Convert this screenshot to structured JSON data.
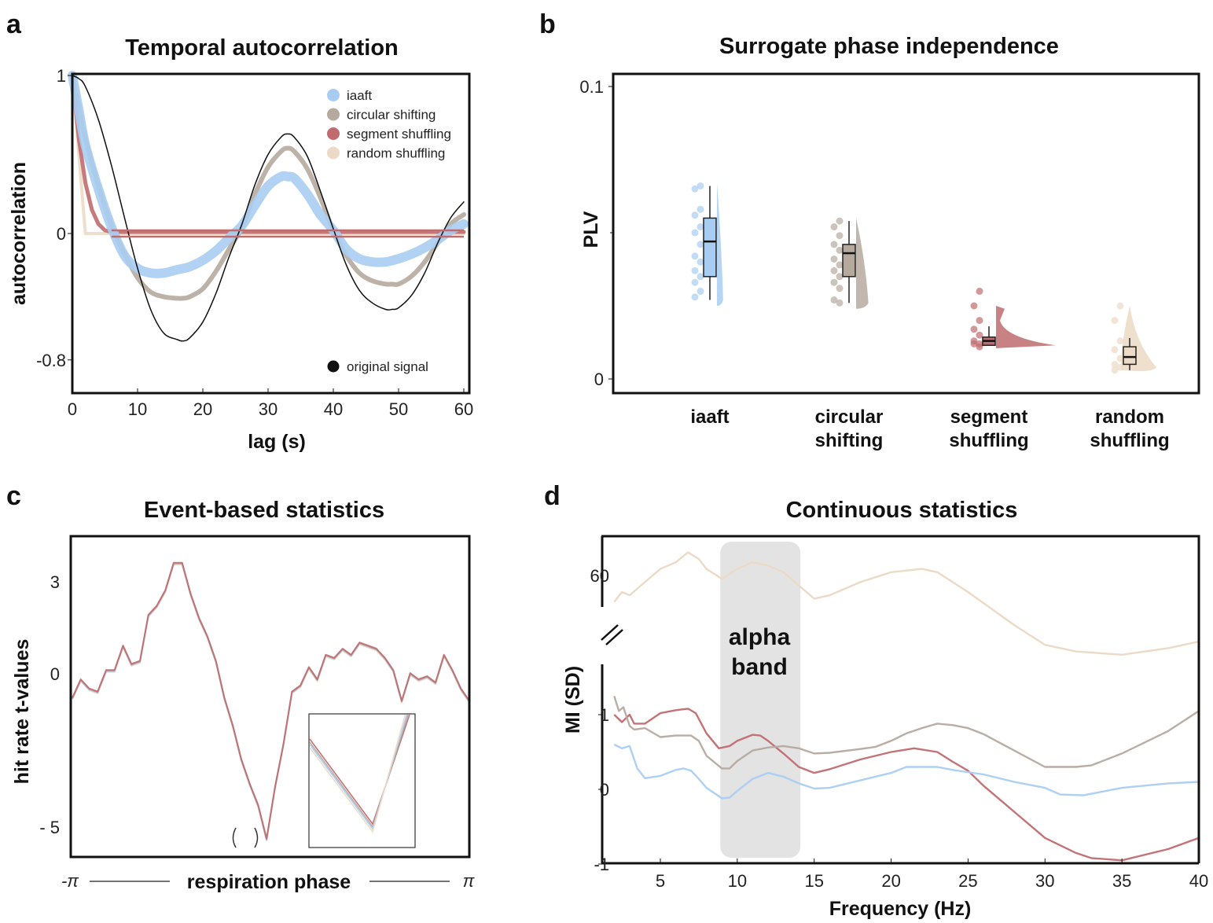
{
  "figure": {
    "colors": {
      "iaaft": "#a9cdf2",
      "circular": "#b6aa9f",
      "segment": "#c06c6f",
      "random": "#ecdac6",
      "original": "#111111",
      "alpha_band": "#e3e3e3"
    }
  },
  "chart_data": [
    {
      "panel": "a",
      "type": "line",
      "title": "Temporal autocorrelation",
      "xlabel": "lag (s)",
      "ylabel": "autocorrelation",
      "xlim": [
        0,
        60
      ],
      "ylim": [
        -0.98,
        1
      ],
      "xticks": [
        "0",
        "10",
        "20",
        "30",
        "40",
        "50",
        "60"
      ],
      "yticks": [
        "1",
        "0",
        "-0.8"
      ],
      "ytick_values": [
        1,
        0,
        -0.8
      ],
      "legend": {
        "placement": "top-right",
        "entries": [
          "iaaft",
          "circular shifting",
          "segment shuffling",
          "random shuffling"
        ]
      },
      "legend2": {
        "placement": "bottom-right",
        "entries": [
          "original signal"
        ]
      },
      "series": [
        {
          "name": "original signal",
          "key": "original",
          "x": [
            0,
            1,
            2,
            4,
            6,
            8,
            10,
            12,
            14,
            16,
            17,
            18,
            20,
            22,
            24,
            26,
            28,
            30,
            32,
            33,
            34,
            36,
            38,
            40,
            42,
            44,
            46,
            48,
            49,
            50,
            52,
            54,
            56,
            58,
            60
          ],
          "y": [
            1,
            0.98,
            0.93,
            0.72,
            0.43,
            0.1,
            -0.22,
            -0.48,
            -0.63,
            -0.67,
            -0.68,
            -0.66,
            -0.56,
            -0.38,
            -0.15,
            0.06,
            0.31,
            0.5,
            0.61,
            0.63,
            0.61,
            0.49,
            0.27,
            0.03,
            -0.2,
            -0.36,
            -0.44,
            -0.48,
            -0.48,
            -0.47,
            -0.39,
            -0.25,
            -0.06,
            0.1,
            0.2
          ]
        },
        {
          "name": "circular shifting",
          "key": "circular",
          "x": [
            0,
            1,
            2,
            4,
            6,
            8,
            10,
            12,
            14,
            16,
            17,
            18,
            20,
            22,
            24,
            26,
            28,
            30,
            32,
            33,
            34,
            36,
            38,
            40,
            42,
            44,
            46,
            48,
            49,
            50,
            52,
            54,
            56,
            58,
            60
          ],
          "y": [
            1,
            0.8,
            0.6,
            0.3,
            0.05,
            -0.13,
            -0.28,
            -0.37,
            -0.4,
            -0.41,
            -0.41,
            -0.4,
            -0.35,
            -0.24,
            -0.1,
            0.04,
            0.25,
            0.42,
            0.52,
            0.54,
            0.52,
            0.41,
            0.23,
            0.02,
            -0.14,
            -0.25,
            -0.3,
            -0.32,
            -0.32,
            -0.32,
            -0.27,
            -0.18,
            -0.06,
            0.06,
            0.12
          ]
        },
        {
          "name": "iaaft",
          "key": "iaaft",
          "x": [
            0,
            1,
            2,
            4,
            6,
            8,
            10,
            12,
            14,
            16,
            18,
            20,
            22,
            24,
            26,
            28,
            30,
            32,
            33,
            34,
            36,
            38,
            40,
            42,
            44,
            46,
            48,
            50,
            52,
            54,
            56,
            58,
            60
          ],
          "y": [
            1,
            0.78,
            0.56,
            0.28,
            0.04,
            -0.14,
            -0.22,
            -0.25,
            -0.25,
            -0.23,
            -0.21,
            -0.17,
            -0.11,
            -0.03,
            0.05,
            0.18,
            0.3,
            0.36,
            0.36,
            0.35,
            0.25,
            0.12,
            0.02,
            -0.1,
            -0.16,
            -0.18,
            -0.18,
            -0.16,
            -0.13,
            -0.09,
            -0.04,
            0.02,
            0.06
          ]
        },
        {
          "name": "segment shuffling",
          "key": "segment",
          "x": [
            0,
            1,
            2,
            3,
            4,
            5,
            6,
            60
          ],
          "y": [
            1,
            0.6,
            0.32,
            0.15,
            0.06,
            0.02,
            0.01,
            0.01
          ]
        },
        {
          "name": "random shuffling",
          "key": "random",
          "x": [
            0,
            1,
            2,
            60
          ],
          "y": [
            1,
            0.5,
            0,
            0
          ]
        }
      ]
    },
    {
      "panel": "b",
      "type": "box",
      "title": "Surrogate phase independence",
      "ylabel": "PLV",
      "ylim": [
        0,
        0.1
      ],
      "yticks": [
        "0.1",
        "0"
      ],
      "ytick_values": [
        0.1,
        0
      ],
      "categories": [
        "iaaft",
        "circular shifting",
        "segment shuffling",
        "random shuffling"
      ],
      "category_lines": [
        [
          "iaaft"
        ],
        [
          "circular",
          "shifting"
        ],
        [
          "segment",
          "shuffling"
        ],
        [
          "random",
          "shuffling"
        ]
      ],
      "series": [
        {
          "name": "iaaft",
          "key": "iaaft",
          "whisker_low": 0.027,
          "q1": 0.035,
          "median": 0.047,
          "q3": 0.055,
          "whisker_high": 0.066,
          "points": [
            0.066,
            0.065,
            0.058,
            0.056,
            0.052,
            0.05,
            0.046,
            0.042,
            0.04,
            0.037,
            0.035,
            0.033,
            0.03,
            0.028
          ]
        },
        {
          "name": "circular shifting",
          "key": "circular",
          "whisker_low": 0.026,
          "q1": 0.035,
          "median": 0.043,
          "q3": 0.046,
          "whisker_high": 0.054,
          "points": [
            0.054,
            0.052,
            0.049,
            0.046,
            0.044,
            0.041,
            0.039,
            0.037,
            0.035,
            0.033,
            0.031,
            0.027,
            0.026
          ]
        },
        {
          "name": "segment shuffling",
          "key": "segment",
          "whisker_low": 0.0115,
          "q1": 0.0115,
          "median": 0.013,
          "q3": 0.0143,
          "whisker_high": 0.018,
          "points": [
            0.03,
            0.025,
            0.02,
            0.017,
            0.015,
            0.013,
            0.012,
            0.012,
            0.011
          ]
        },
        {
          "name": "random shuffling",
          "key": "random",
          "whisker_low": 0.003,
          "q1": 0.005,
          "median": 0.0075,
          "q3": 0.011,
          "whisker_high": 0.014,
          "points": [
            0.025,
            0.02,
            0.013,
            0.01,
            0.007,
            0.005,
            0.004,
            0.003
          ]
        }
      ]
    },
    {
      "panel": "c",
      "type": "line",
      "title": "Event-based statistics",
      "ylabel": "hit rate t-values",
      "xlabel": "respiration phase",
      "x_range_labels": [
        "-π",
        "π"
      ],
      "xlim": [
        -3.1416,
        3.1416
      ],
      "ylim": [
        -5.6,
        4.8
      ],
      "yticks": [
        "3",
        "0",
        "- 5"
      ],
      "ytick_values": [
        3,
        0,
        -5
      ],
      "inset": "zoom of minimum near the marked bracket",
      "series": [
        {
          "name": "iaaft",
          "key": "iaaft"
        },
        {
          "name": "circular shifting",
          "key": "circular"
        },
        {
          "name": "segment shuffling",
          "key": "segment"
        },
        {
          "name": "random shuffling",
          "key": "random"
        }
      ],
      "y": [
        -0.8,
        -0.2,
        -0.5,
        -0.6,
        0.1,
        0.1,
        0.9,
        0.3,
        0.4,
        1.9,
        2.2,
        2.7,
        3.6,
        3.6,
        2.6,
        1.8,
        1.2,
        0.4,
        -0.8,
        -1.7,
        -2.8,
        -3.6,
        -4.3,
        -5.4,
        -3.7,
        -2.3,
        -0.6,
        -0.4,
        0.2,
        -0.2,
        0.6,
        0.5,
        0.8,
        0.6,
        1,
        0.9,
        0.8,
        0.5,
        0.1,
        -0.9,
        0,
        -0.2,
        -0.1,
        -0.3,
        0.6,
        0.1,
        -0.5,
        -0.9
      ]
    },
    {
      "panel": "d",
      "type": "line",
      "title": "Continuous statistics",
      "xlabel": "Frequency (Hz)",
      "ylabel": "MI (SD)",
      "xlim": [
        2,
        40
      ],
      "xticks": [
        "5",
        "10",
        "15",
        "20",
        "25",
        "30",
        "35",
        "40"
      ],
      "xtick_values": [
        5,
        10,
        15,
        20,
        25,
        30,
        35,
        40
      ],
      "ylim": [
        -1,
        1.9
      ],
      "yticks": [
        "1",
        "0",
        "-1"
      ],
      "ytick_values": [
        1,
        0,
        -1
      ],
      "upper_axis": {
        "ytick": "60",
        "ytick_value": 60,
        "note": "broken axis"
      },
      "annotation": {
        "text_lines": [
          "alpha",
          "band"
        ],
        "x_range": [
          9,
          14
        ]
      },
      "series": [
        {
          "name": "random shuffling",
          "key": "random",
          "axis": "upper",
          "x": [
            2,
            2.5,
            3,
            4,
            5,
            6,
            6.8,
            7.5,
            8,
            9,
            10,
            11,
            12,
            13,
            14,
            15,
            16,
            18,
            20,
            22,
            23,
            25,
            28,
            30,
            32,
            35,
            38,
            40
          ],
          "y": [
            52,
            55,
            54,
            58,
            62,
            64,
            67,
            65,
            62,
            59,
            62,
            64,
            63,
            61,
            57,
            53,
            54,
            58,
            61,
            62,
            61,
            55,
            45,
            39,
            37,
            36,
            38,
            40
          ]
        },
        {
          "name": "segment shuffling",
          "key": "segment",
          "axis": "lower",
          "x": [
            2,
            2.5,
            3,
            3.3,
            4,
            5,
            6,
            6.8,
            7.3,
            8,
            8.8,
            9.5,
            10,
            11,
            11.5,
            12,
            13,
            14,
            15,
            16,
            18,
            20,
            21.5,
            23,
            24,
            25,
            26,
            28,
            30,
            32,
            33,
            35,
            38,
            40
          ],
          "y": [
            1,
            0.9,
            1,
            0.88,
            0.88,
            1.02,
            1.06,
            1.08,
            1.02,
            0.75,
            0.55,
            0.58,
            0.65,
            0.73,
            0.72,
            0.65,
            0.48,
            0.3,
            0.22,
            0.27,
            0.4,
            0.5,
            0.55,
            0.5,
            0.37,
            0.25,
            0.05,
            -0.3,
            -0.65,
            -0.85,
            -0.92,
            -0.95,
            -0.8,
            -0.65
          ]
        },
        {
          "name": "circular shifting",
          "key": "circular",
          "axis": "lower",
          "x": [
            2,
            2.3,
            2.6,
            3,
            3.3,
            4,
            5,
            6,
            7,
            7.5,
            8,
            9,
            9.5,
            10,
            11,
            12,
            13,
            14,
            15,
            16,
            18,
            19,
            20,
            21,
            22,
            23,
            24,
            25,
            26,
            28,
            30,
            32,
            33,
            35,
            38,
            40
          ],
          "y": [
            1.25,
            1.05,
            1.1,
            0.85,
            0.8,
            0.82,
            0.7,
            0.72,
            0.72,
            0.65,
            0.45,
            0.28,
            0.28,
            0.38,
            0.52,
            0.56,
            0.58,
            0.55,
            0.48,
            0.49,
            0.54,
            0.57,
            0.65,
            0.75,
            0.82,
            0.88,
            0.86,
            0.82,
            0.74,
            0.52,
            0.3,
            0.3,
            0.32,
            0.48,
            0.78,
            1.05
          ]
        },
        {
          "name": "iaaft",
          "key": "iaaft",
          "axis": "lower",
          "x": [
            2,
            2.5,
            3,
            3.5,
            4,
            5,
            6,
            6.5,
            7,
            7.5,
            8,
            9,
            9.5,
            10,
            11,
            12,
            13,
            14,
            15,
            16,
            18,
            20,
            21,
            23,
            24,
            26,
            28,
            30,
            31,
            32.5,
            35,
            38,
            40
          ],
          "y": [
            0.6,
            0.55,
            0.58,
            0.28,
            0.15,
            0.18,
            0.26,
            0.28,
            0.25,
            0.14,
            0.02,
            -0.12,
            -0.11,
            -0.02,
            0.14,
            0.22,
            0.17,
            0.08,
            0.01,
            0.02,
            0.12,
            0.22,
            0.3,
            0.3,
            0.26,
            0.2,
            0.1,
            0.02,
            -0.07,
            -0.08,
            0.02,
            0.08,
            0.1
          ]
        }
      ]
    }
  ]
}
